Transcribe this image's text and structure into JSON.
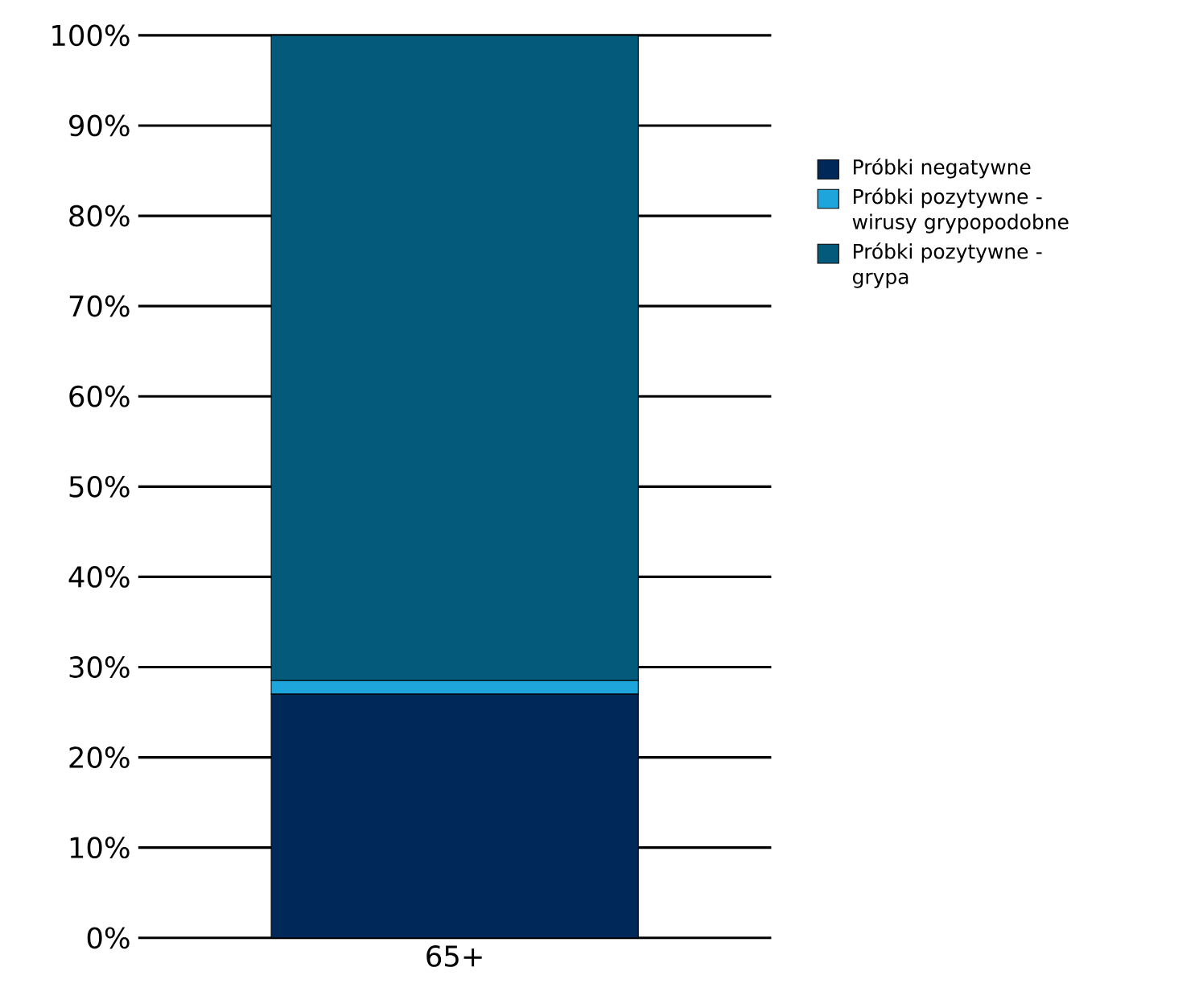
{
  "chart_data": {
    "type": "bar",
    "stacked": true,
    "categories": [
      "65+"
    ],
    "series": [
      {
        "name": "Próbki negatywne",
        "color": "#00295a",
        "values": [
          27
        ]
      },
      {
        "name": "Próbki pozytywne - wirusy grypopodobne",
        "color": "#1ea6dc",
        "values": [
          1.5
        ]
      },
      {
        "name": "Próbki pozytywne - grypa",
        "color": "#035a7a",
        "values": [
          71.5
        ]
      }
    ],
    "ylim": [
      0,
      100
    ],
    "yticks": [
      {
        "value": 0,
        "label": "0%"
      },
      {
        "value": 10,
        "label": "10%"
      },
      {
        "value": 20,
        "label": "20%"
      },
      {
        "value": 30,
        "label": "30%"
      },
      {
        "value": 40,
        "label": "40%"
      },
      {
        "value": 50,
        "label": "50%"
      },
      {
        "value": 60,
        "label": "60%"
      },
      {
        "value": 70,
        "label": "70%"
      },
      {
        "value": 80,
        "label": "80%"
      },
      {
        "value": 90,
        "label": "90%"
      },
      {
        "value": 100,
        "label": "100%"
      }
    ],
    "grid": "y",
    "legend": "right"
  }
}
